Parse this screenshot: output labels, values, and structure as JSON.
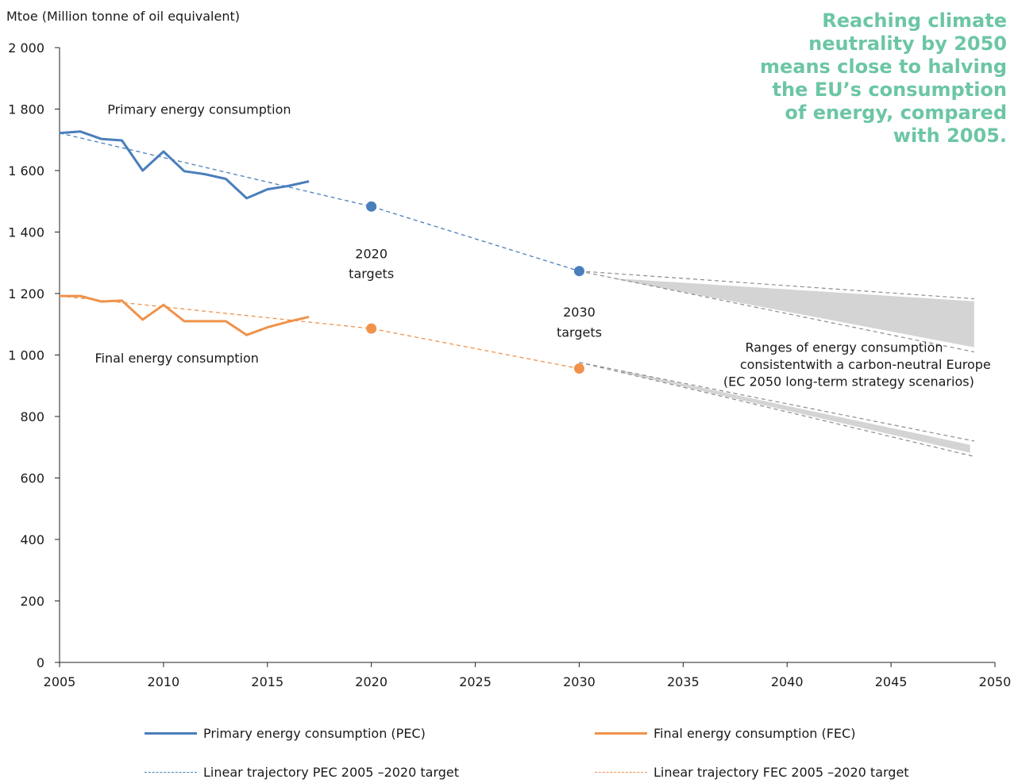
{
  "headline": {
    "lines": [
      "Reaching climate",
      "neutrality by 2050",
      "means close to halving",
      "the EU’s consumption",
      "of energy, compared",
      "with 2005."
    ],
    "color": "#6cc6a4"
  },
  "chart_data": {
    "type": "line",
    "ylabel": "Mtoe (Million tonne of oil equivalent)",
    "xlim": [
      2005,
      2050
    ],
    "ylim": [
      0,
      2000
    ],
    "x_ticks": [
      2005,
      2010,
      2015,
      2020,
      2025,
      2030,
      2035,
      2040,
      2045,
      2050
    ],
    "y_ticks": [
      0,
      200,
      400,
      600,
      800,
      1000,
      1200,
      1400,
      1600,
      1800,
      2000
    ],
    "y_tick_labels": [
      "0",
      "200",
      "400",
      "600",
      "800",
      "1 000",
      "1 200",
      "1 400",
      "1 600",
      "1 800",
      "2 000"
    ],
    "grid": false,
    "legend_position": "bottom",
    "series": [
      {
        "name": "Primary energy consumption (PEC)",
        "style": "solid",
        "color": "#4a7ebb",
        "x": [
          2005,
          2006,
          2007,
          2008,
          2009,
          2010,
          2011,
          2012,
          2013,
          2014,
          2015,
          2016,
          2017
        ],
        "y": [
          1722,
          1727,
          1703,
          1698,
          1600,
          1662,
          1598,
          1588,
          1573,
          1510,
          1539,
          1550,
          1565
        ]
      },
      {
        "name": "Final energy consumption (FEC)",
        "style": "solid",
        "color": "#f0924b",
        "x": [
          2005,
          2006,
          2007,
          2008,
          2009,
          2010,
          2011,
          2012,
          2013,
          2014,
          2015,
          2016,
          2017
        ],
        "y": [
          1192,
          1192,
          1174,
          1177,
          1115,
          1163,
          1110,
          1110,
          1110,
          1065,
          1090,
          1108,
          1124
        ]
      },
      {
        "name": "Linear trajectory PEC 2005 –2020 target",
        "style": "dashed",
        "color": "#4a7ebb",
        "x": [
          2005,
          2020,
          2030
        ],
        "y": [
          1722,
          1483,
          1273
        ]
      },
      {
        "name": "Linear trajectory FEC 2005 –2020 target",
        "style": "dashed",
        "color": "#f0924b",
        "x": [
          2005,
          2020,
          2030
        ],
        "y": [
          1192,
          1086,
          956
        ]
      }
    ],
    "targets": [
      {
        "x": 2020,
        "y": 1483,
        "color": "#4a7ebb"
      },
      {
        "x": 2030,
        "y": 1273,
        "color": "#4a7ebb"
      },
      {
        "x": 2020,
        "y": 1086,
        "color": "#f0924b"
      },
      {
        "x": 2030,
        "y": 956,
        "color": "#f0924b"
      }
    ],
    "ranges": [
      {
        "dash_upper": {
          "x": [
            2030,
            2049
          ],
          "y": [
            1273,
            1183
          ]
        },
        "dash_lower": {
          "x": [
            2030,
            2049
          ],
          "y": [
            1273,
            1010
          ]
        },
        "band": {
          "x": [
            2031.5,
            2049
          ],
          "upper": [
            1250,
            1175
          ],
          "lower": [
            1250,
            1025
          ]
        }
      },
      {
        "dash_upper": {
          "x": [
            2030,
            2049
          ],
          "y": [
            976,
            720
          ]
        },
        "dash_lower": {
          "x": [
            2030,
            2049
          ],
          "y": [
            976,
            670
          ]
        },
        "band": {
          "x": [
            2032,
            2048.8
          ],
          "upper": [
            950,
            708
          ],
          "lower": [
            944,
            682
          ]
        }
      }
    ],
    "annotations": [
      {
        "text": "Primary energy consumption",
        "x": 2007.3,
        "y": 1785
      },
      {
        "text": "Final energy consumption",
        "x": 2006.7,
        "y": 975
      },
      {
        "text": "2020",
        "x": 2020,
        "y": 1315,
        "anchor": "middle"
      },
      {
        "text": "targets",
        "x": 2020,
        "y": 1250,
        "anchor": "middle"
      },
      {
        "text": "2030",
        "x": 2030,
        "y": 1125,
        "anchor": "middle"
      },
      {
        "text": "targets",
        "x": 2030,
        "y": 1060,
        "anchor": "middle"
      },
      {
        "text": "Ranges of energy consumption",
        "x": 2047.5,
        "y": 1010,
        "anchor": "end"
      },
      {
        "text": "consistentwith a carbon-neutral Europe",
        "x": 2049.8,
        "y": 955,
        "anchor": "end"
      },
      {
        "text": "(EC 2050 long-term strategy scenarios)",
        "x": 2049.0,
        "y": 900,
        "anchor": "end"
      }
    ]
  }
}
